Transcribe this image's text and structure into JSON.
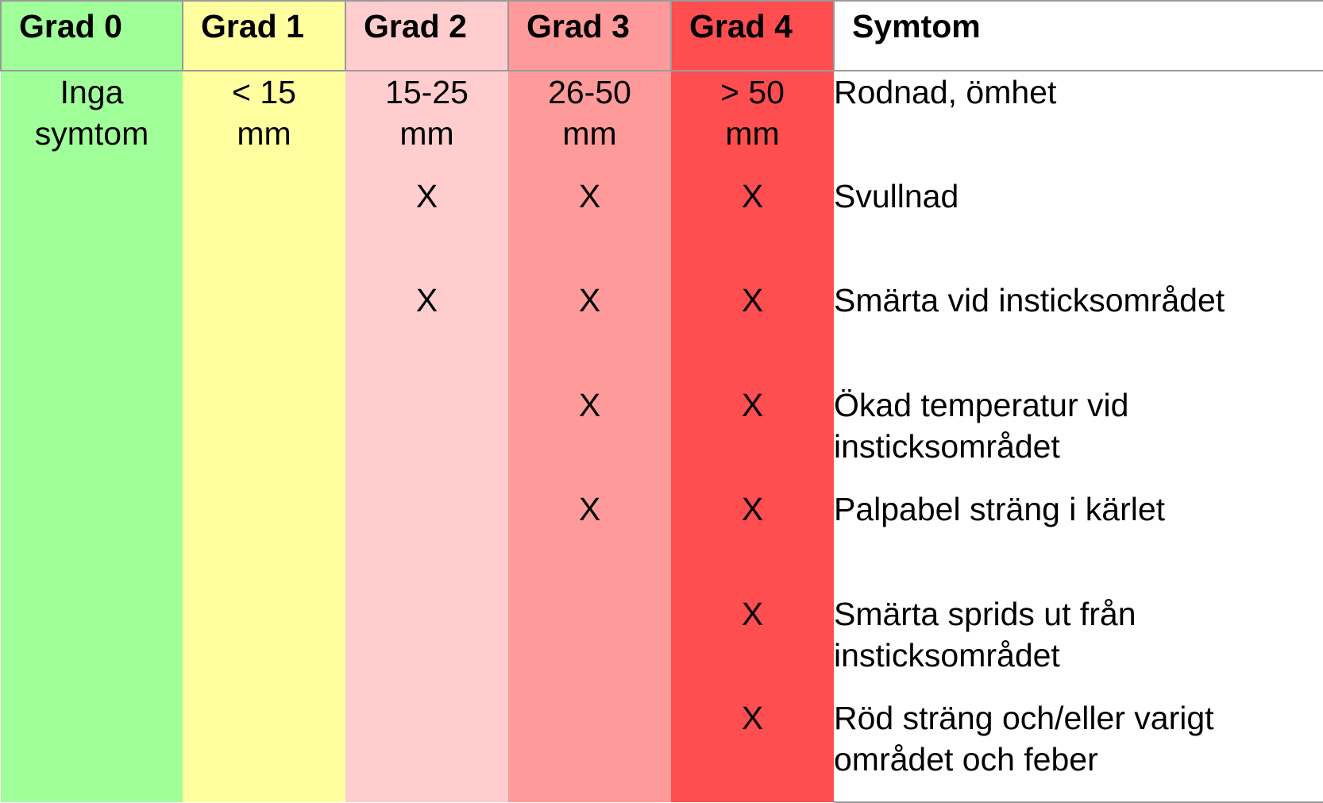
{
  "headers": [
    "Grad 0",
    "Grad 1",
    "Grad 2",
    "Grad 3",
    "Grad 4",
    "Symtom"
  ],
  "sizes": {
    "grad0": "Inga symtom",
    "grad1": "< 15 mm",
    "grad2": "15-25 mm",
    "grad3": "26-50 mm",
    "grad4": "> 50 mm"
  },
  "mark": "X",
  "symptoms": [
    "Rodnad, ömhet",
    "Svullnad",
    "Smärta vid insticksområdet",
    "Ökad temperatur vid insticksområdet",
    "Palpabel sträng i kärlet",
    "Smärta sprids ut från insticksområdet",
    "Röd sträng och/eller varigt området och feber"
  ],
  "colors": {
    "grad0": "#a0ff98",
    "grad1": "#ffff9f",
    "grad2": "#ffcdcd",
    "grad3": "#ff9a9a",
    "grad4": "#ff4e50"
  }
}
